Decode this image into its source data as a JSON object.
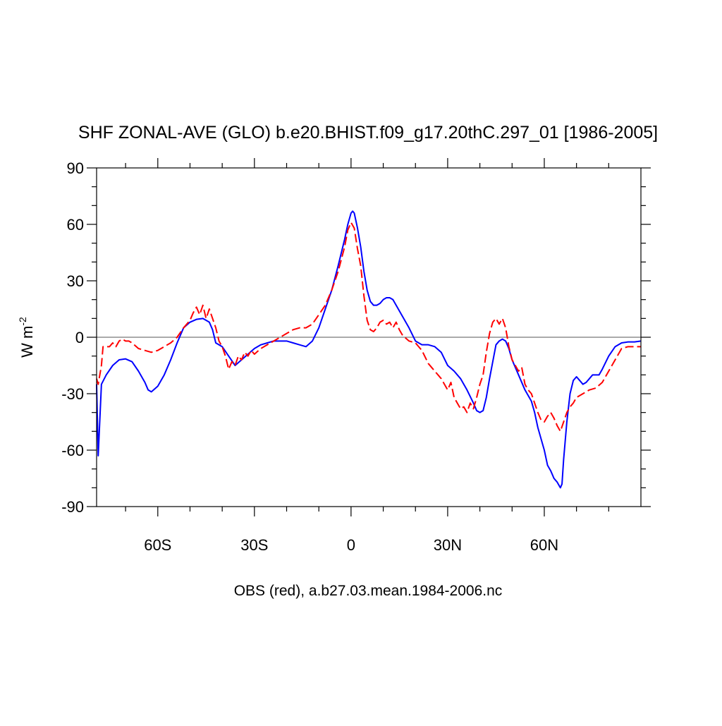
{
  "chart_data": {
    "type": "line",
    "title": "SHF ZONAL-AVE (GLO) b.e20.BHIST.f09_g17.20thC.297_01 [1986-2005]",
    "subtitle": "OBS (red), a.b27.03.mean.1984-2006.nc",
    "ylabel": "W m",
    "ylabel_superscript": "-2",
    "xlim": [
      -79,
      90
    ],
    "ylim": [
      -90,
      90
    ],
    "xticks": [
      {
        "value": -60,
        "label": "60S"
      },
      {
        "value": -30,
        "label": "30S"
      },
      0,
      {
        "value": 30,
        "label": "30N"
      },
      {
        "value": 60,
        "label": "60N"
      }
    ],
    "xminorticks": [
      -70,
      -50,
      -40,
      -20,
      -10,
      10,
      20,
      40,
      50,
      70,
      80
    ],
    "yticks": [
      -90,
      -60,
      -30,
      0,
      30,
      60,
      90
    ],
    "yminorticks": [
      -80,
      -70,
      -50,
      -40,
      -20,
      -10,
      10,
      20,
      40,
      50,
      70,
      80
    ],
    "reference_line": 0,
    "series": [
      {
        "color": "#0000ff",
        "dash": false,
        "x": [
          -79,
          -78.5,
          -77.5,
          -76,
          -74,
          -72,
          -70,
          -68,
          -66,
          -64,
          -63,
          -62,
          -60,
          -58,
          -56,
          -54,
          -52,
          -50,
          -48,
          -46,
          -44,
          -43,
          -42,
          -40,
          -38,
          -36,
          -34,
          -32,
          -30,
          -28,
          -26,
          -24,
          -22,
          -20,
          -18,
          -16,
          -14,
          -12,
          -10,
          -8,
          -6,
          -4,
          -2,
          -1,
          0,
          0.5,
          1,
          2,
          3,
          4,
          5,
          6,
          7,
          8,
          9,
          10,
          11,
          12,
          13,
          14,
          16,
          18,
          20,
          22,
          24,
          26,
          28,
          30,
          32,
          34,
          36,
          38,
          39,
          40,
          41,
          42,
          43,
          44,
          45,
          46,
          47,
          48,
          49,
          50,
          52,
          54,
          56,
          57,
          58,
          60,
          61,
          62,
          63,
          64,
          65,
          65.5,
          66,
          67,
          68,
          69,
          70,
          71,
          72,
          73,
          74,
          75,
          77,
          78,
          80,
          82,
          84,
          86,
          88,
          90
        ],
        "values": [
          -25,
          -63,
          -25,
          -20,
          -15,
          -12,
          -11.5,
          -13,
          -18,
          -24,
          -28,
          -29,
          -26,
          -20,
          -12,
          -3,
          5,
          8,
          9.5,
          10,
          8,
          4,
          -3,
          -5,
          -10,
          -15,
          -12,
          -9,
          -6,
          -4,
          -3,
          -2,
          -2,
          -2,
          -3,
          -4,
          -5,
          -2,
          5,
          15,
          25,
          38,
          52,
          60,
          66,
          67,
          66,
          58,
          48,
          35,
          25,
          19,
          17,
          17,
          18,
          20,
          21,
          21,
          20,
          17,
          11,
          5,
          -2,
          -4,
          -4,
          -5,
          -8,
          -15,
          -18,
          -22,
          -28,
          -35,
          -39,
          -40,
          -39,
          -32,
          -22,
          -13,
          -4,
          -2,
          -1,
          -2,
          -6,
          -12,
          -20,
          -28,
          -34,
          -40,
          -48,
          -60,
          -68,
          -71,
          -75,
          -77,
          -80,
          -78,
          -65,
          -45,
          -30,
          -23,
          -21,
          -23,
          -25,
          -24,
          -22,
          -20,
          -20,
          -17,
          -10,
          -5,
          -3,
          -2.5,
          -2.5,
          -2
        ]
      },
      {
        "color": "#ff0000",
        "dash": true,
        "x": [
          -79,
          -78.5,
          -77.5,
          -77,
          -75,
          -74,
          -73,
          -72,
          -71,
          -70,
          -69,
          -68,
          -66,
          -64,
          -62,
          -60,
          -58,
          -56,
          -54,
          -52,
          -50,
          -49,
          -48,
          -47,
          -46,
          -45,
          -44,
          -43,
          -42,
          -41,
          -40,
          -39,
          -38,
          -37,
          -36,
          -35,
          -34,
          -33,
          -32,
          -31,
          -30,
          -28,
          -26,
          -24,
          -22,
          -20,
          -18,
          -16,
          -14,
          -12,
          -10,
          -8,
          -6,
          -4,
          -2,
          -1,
          0,
          1,
          2,
          3,
          4,
          5,
          6,
          7,
          8,
          9,
          10,
          11,
          12,
          13,
          14,
          15,
          16,
          18,
          20,
          22,
          24,
          26,
          28,
          30,
          31,
          32,
          33,
          34,
          35,
          36,
          37,
          38,
          39,
          40,
          41,
          42,
          43,
          44,
          45,
          46,
          47,
          48,
          49,
          50,
          51,
          52,
          53,
          54,
          55,
          56,
          57,
          58,
          59,
          60,
          61,
          62,
          63,
          64,
          65,
          66,
          67,
          68,
          69,
          70,
          72,
          74,
          76,
          78,
          80,
          82,
          84,
          86,
          88,
          90
        ],
        "values": [
          -22,
          -25,
          -15,
          -5,
          -5,
          -3,
          -5,
          -2,
          -1,
          -2,
          -2,
          -3,
          -6,
          -7,
          -8,
          -7,
          -5,
          -3,
          0,
          5,
          9,
          13,
          16,
          12,
          17,
          10,
          15,
          10,
          5,
          -2,
          -5,
          -10,
          -17,
          -13,
          -15,
          -10,
          -12,
          -8,
          -10,
          -7,
          -9,
          -6,
          -4,
          -2,
          0,
          2,
          4,
          5,
          5,
          7,
          12,
          17,
          25,
          35,
          48,
          57,
          61,
          58,
          47,
          38,
          22,
          9,
          4,
          3,
          5,
          8,
          9,
          7,
          8,
          5,
          8,
          4,
          1,
          -2,
          -3,
          -7,
          -14,
          -18,
          -22,
          -28,
          -24,
          -32,
          -35,
          -38,
          -37,
          -40,
          -35,
          -38,
          -32,
          -25,
          -20,
          -8,
          2,
          8,
          10,
          7,
          10,
          5,
          -5,
          -12,
          -15,
          -18,
          -16,
          -25,
          -28,
          -30,
          -35,
          -40,
          -44,
          -45,
          -42,
          -40,
          -43,
          -47,
          -50,
          -45,
          -40,
          -37,
          -35,
          -32,
          -30,
          -28,
          -27,
          -24,
          -18,
          -12,
          -6,
          -5,
          -5,
          -5
        ]
      }
    ]
  }
}
